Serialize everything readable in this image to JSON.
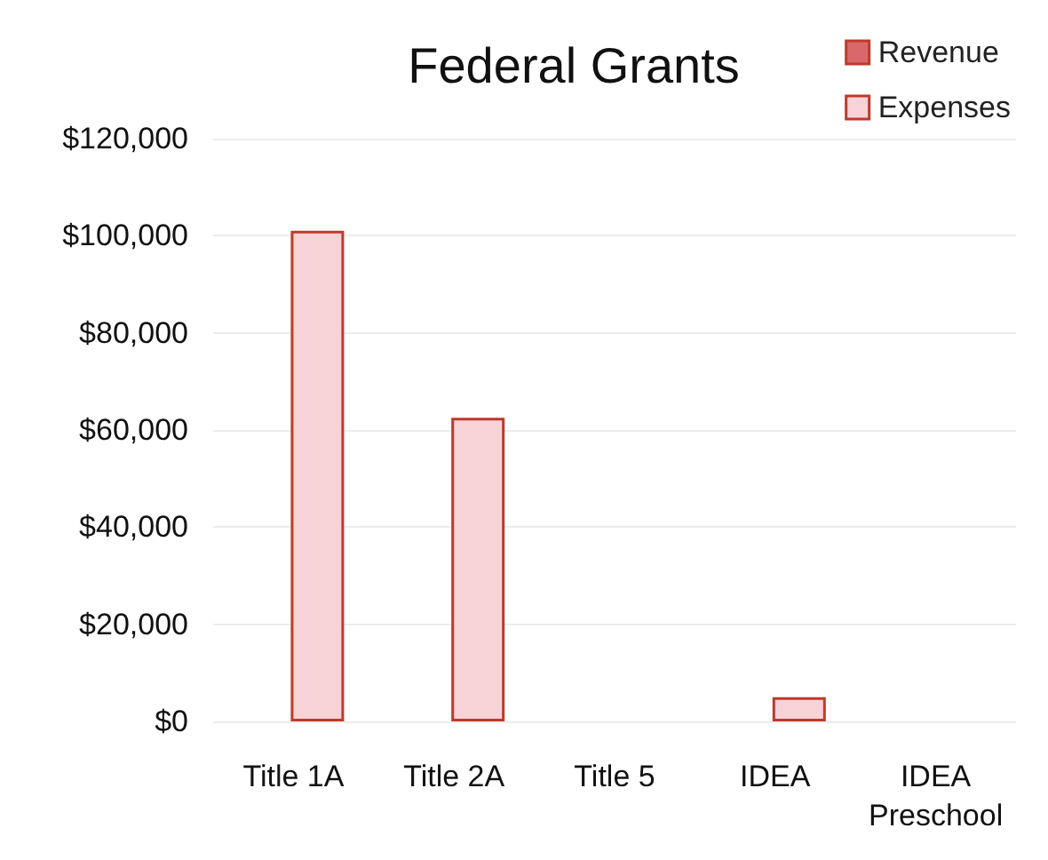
{
  "chart_data": {
    "type": "bar",
    "title": "Federal Grants",
    "categories": [
      "Title 1A",
      "Title 2A",
      "Title 5",
      "IDEA",
      "IDEA\nPreschool"
    ],
    "series": [
      {
        "name": "Revenue",
        "color": "#d9686c",
        "values": [
          null,
          null,
          null,
          null,
          null
        ]
      },
      {
        "name": "Expenses",
        "color": "#f7d3d8",
        "values": [
          101000,
          62500,
          null,
          5000,
          null
        ]
      }
    ],
    "ylim": [
      0,
      120000
    ],
    "yticks": [
      {
        "value": 0,
        "label": "$0"
      },
      {
        "value": 20000,
        "label": "$20,000"
      },
      {
        "value": 40000,
        "label": "$40,000"
      },
      {
        "value": 60000,
        "label": "$60,000"
      },
      {
        "value": 80000,
        "label": "$80,000"
      },
      {
        "value": 100000,
        "label": "$100,000"
      },
      {
        "value": 120000,
        "label": "$120,000"
      }
    ],
    "grid": "y",
    "legend": "top right"
  }
}
